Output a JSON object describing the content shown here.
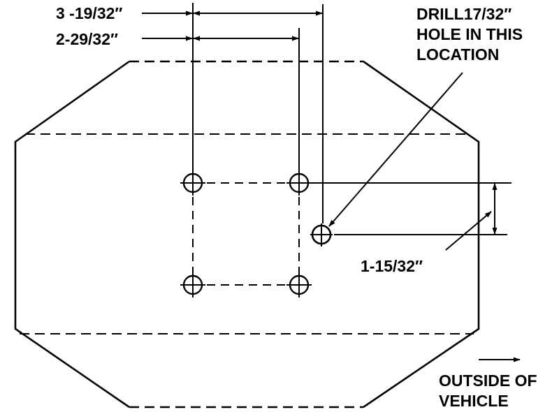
{
  "diagram": {
    "dimensions": {
      "dim_outer": "3 -19/32″",
      "dim_inner": "2-29/32″",
      "dim_vertical": "1-15/32″"
    },
    "callout": {
      "line1": "DRILL17/32″",
      "line2": "HOLE IN THIS",
      "line3": "LOCATION"
    },
    "direction": {
      "line1": "OUTSIDE OF",
      "line2": "VEHICLE"
    },
    "ink_color": "#000000",
    "background_color": "#ffffff"
  }
}
